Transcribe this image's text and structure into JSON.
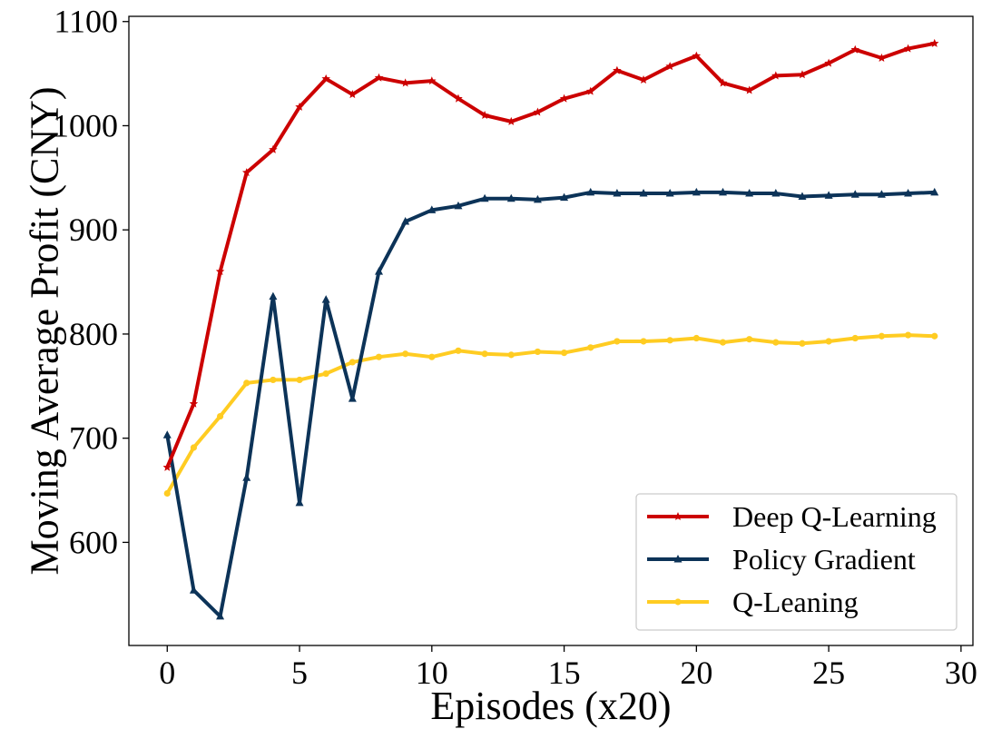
{
  "chart_data": {
    "type": "line",
    "title": "",
    "xlabel": "Episodes (x20)",
    "ylabel": "Moving Average Profit (CNY)",
    "xlim": [
      -1.45,
      30.45
    ],
    "ylim": [
      501,
      1105
    ],
    "xticks": [
      0,
      5,
      10,
      15,
      20,
      25,
      30
    ],
    "yticks": [
      600,
      700,
      800,
      900,
      1000,
      1100
    ],
    "grid": false,
    "legend_position": "lower-right",
    "x": [
      0,
      1,
      2,
      3,
      4,
      5,
      6,
      7,
      8,
      9,
      10,
      11,
      12,
      13,
      14,
      15,
      16,
      17,
      18,
      19,
      20,
      21,
      22,
      23,
      24,
      25,
      26,
      27,
      28,
      29
    ],
    "series": [
      {
        "name": "Deep Q-Learning",
        "color": "#cc0000",
        "marker": "star",
        "values": [
          672,
          733,
          860,
          955,
          977,
          1018,
          1045,
          1030,
          1046,
          1041,
          1043,
          1026,
          1010,
          1004,
          1013,
          1026,
          1033,
          1053,
          1044,
          1057,
          1067,
          1041,
          1034,
          1048,
          1049,
          1060,
          1073,
          1065,
          1074,
          1079
        ]
      },
      {
        "name": "Policy Gradient",
        "color": "#0c3358",
        "marker": "triangle",
        "values": [
          703,
          554,
          529,
          662,
          836,
          638,
          833,
          738,
          860,
          908,
          919,
          923,
          930,
          930,
          929,
          931,
          936,
          935,
          935,
          935,
          936,
          936,
          935,
          935,
          932,
          933,
          934,
          934,
          935,
          936
        ]
      },
      {
        "name": "Q-Leaning",
        "color": "#ffcc22",
        "marker": "circle",
        "values": [
          647,
          691,
          721,
          753,
          756,
          756,
          762,
          773,
          778,
          781,
          778,
          784,
          781,
          780,
          783,
          782,
          787,
          793,
          793,
          794,
          796,
          792,
          795,
          792,
          791,
          793,
          796,
          798,
          799,
          798
        ]
      }
    ]
  }
}
